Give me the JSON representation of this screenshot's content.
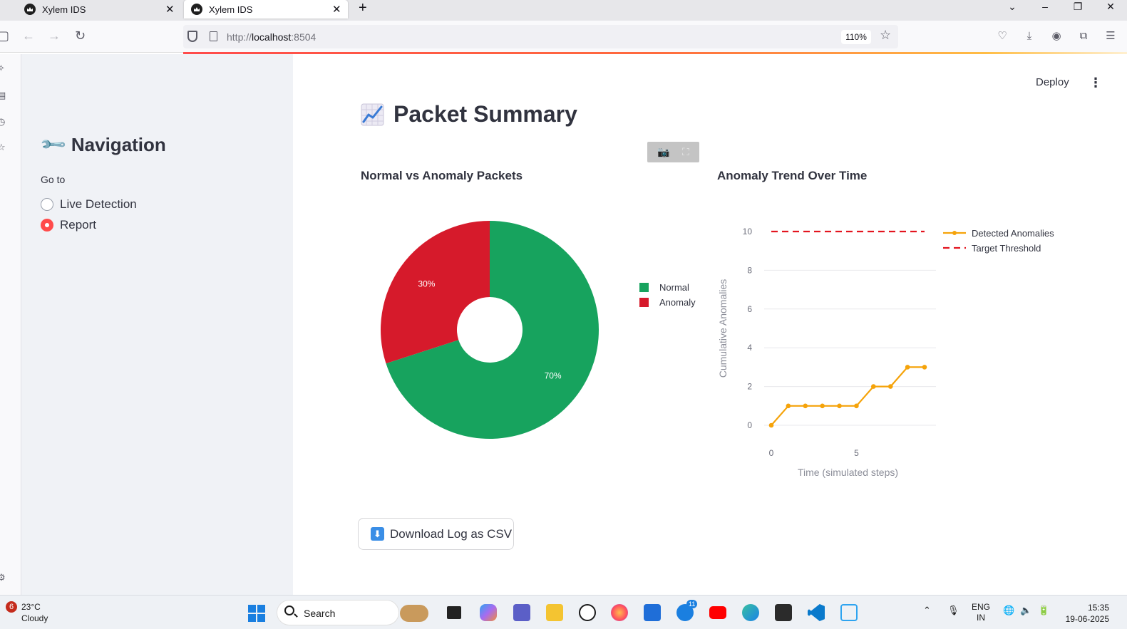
{
  "browser": {
    "tabs": [
      {
        "title": "Xylem IDS",
        "active": false
      },
      {
        "title": "Xylem IDS",
        "active": true
      }
    ],
    "url_host": "localhost",
    "url_rest": ":8504",
    "url_scheme": "http://",
    "zoom": "110%"
  },
  "sidebar": {
    "title": "Navigation",
    "goto_label": "Go to",
    "options": [
      {
        "label": "Live Detection",
        "selected": false
      },
      {
        "label": "Report",
        "selected": true
      }
    ]
  },
  "header": {
    "deploy_label": "Deploy"
  },
  "main": {
    "page_title": "Packet Summary",
    "download_label": "Download Log as CSV"
  },
  "chart_data": [
    {
      "type": "pie",
      "title": "Normal vs Anomaly Packets",
      "hole": true,
      "slices": [
        {
          "label": "Normal",
          "value": 70,
          "text": "70%",
          "color": "#17a35e"
        },
        {
          "label": "Anomaly",
          "value": 30,
          "text": "30%",
          "color": "#d61a2b"
        }
      ],
      "legend": "top-right"
    },
    {
      "type": "line",
      "title": "Anomaly Trend Over Time",
      "xlabel": "Time (simulated steps)",
      "ylabel": "Cumulative Anomalies",
      "x": [
        0,
        1,
        2,
        3,
        4,
        5,
        6,
        7,
        8,
        9
      ],
      "series": [
        {
          "name": "Detected Anomalies",
          "values": [
            0,
            1,
            1,
            1,
            1,
            1,
            2,
            2,
            3,
            3
          ],
          "color": "#f5a30a",
          "style": "lines+markers"
        },
        {
          "name": "Target Threshold",
          "values": [
            10,
            10,
            10,
            10,
            10,
            10,
            10,
            10,
            10,
            10
          ],
          "color": "#e3141f",
          "style": "dash"
        }
      ],
      "xticks": [
        0,
        5
      ],
      "yticks": [
        0,
        2,
        4,
        6,
        8,
        10
      ],
      "xlim": [
        0,
        9
      ],
      "ylim": [
        0,
        10
      ],
      "grid": true,
      "legend": "top-right"
    }
  ],
  "taskbar": {
    "notification_count": "6",
    "temperature": "23°C",
    "condition": "Cloudy",
    "search_label": "Search",
    "app_badge": "11",
    "lang_top": "ENG",
    "lang_bottom": "IN",
    "time": "15:35",
    "date": "19-06-2025"
  }
}
